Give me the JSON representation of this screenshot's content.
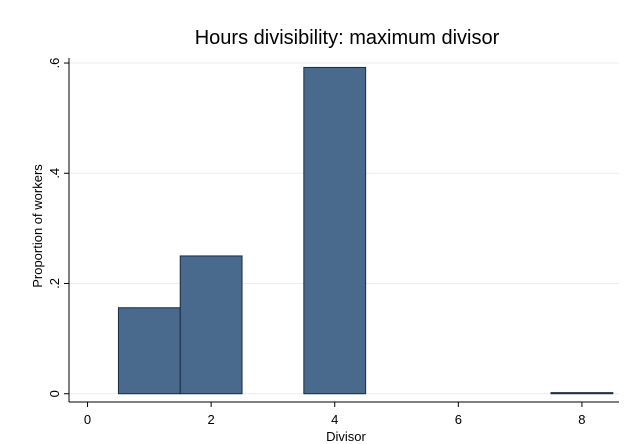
{
  "chart_data": {
    "type": "bar",
    "title": "Hours divisibility: maximum divisor",
    "xlabel": "Divisor",
    "ylabel": "Proportion of workers",
    "x": [
      1,
      2,
      4,
      8
    ],
    "values": [
      0.156,
      0.25,
      0.592,
      0.002
    ],
    "bar_width": 1,
    "xlim": [
      -0.3,
      8.6
    ],
    "ylim": [
      -0.015,
      0.62
    ],
    "xticks": [
      0,
      2,
      4,
      6,
      8
    ],
    "xtick_labels": [
      "0",
      "2",
      "4",
      "6",
      "8"
    ],
    "yticks": [
      0,
      0.2,
      0.4,
      0.6
    ],
    "ytick_labels": [
      "0",
      ".2",
      ".4",
      ".6"
    ],
    "grid": true,
    "legend": "none",
    "bar_color": "#496a8c",
    "bar_edge_color": "#1a2c40"
  }
}
